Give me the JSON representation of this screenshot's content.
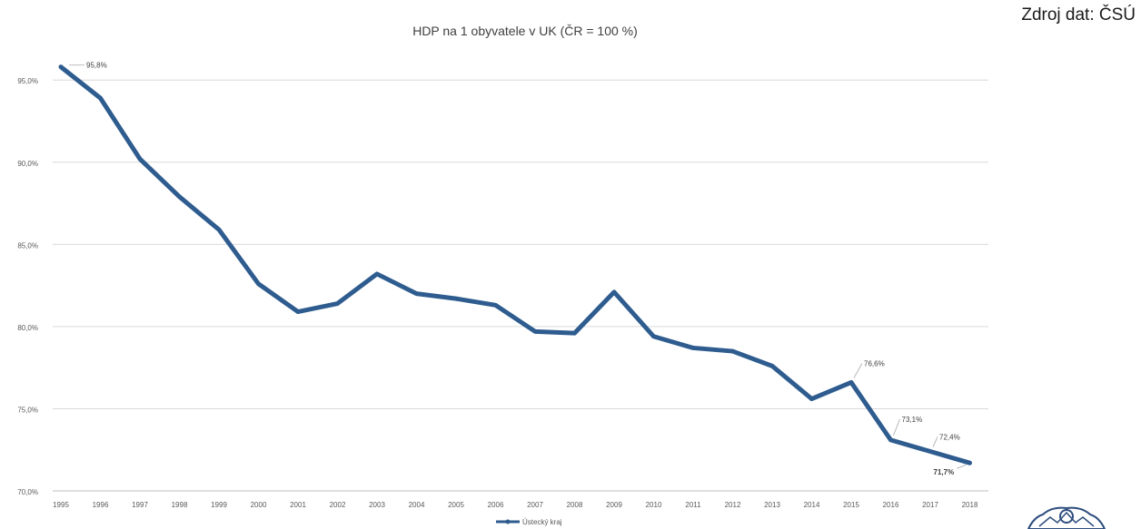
{
  "source": "Zdroj dat: ČSÚ",
  "chart_data": {
    "type": "line",
    "title": "HDP na 1 obyvatele v UK (ČR = 100 %)",
    "xlabel": "",
    "ylabel": "",
    "x": [
      "1995",
      "1996",
      "1997",
      "1998",
      "1999",
      "2000",
      "2001",
      "2002",
      "2003",
      "2004",
      "2005",
      "2006",
      "2007",
      "2008",
      "2009",
      "2010",
      "2011",
      "2012",
      "2013",
      "2014",
      "2015",
      "2016",
      "2017",
      "2018"
    ],
    "yticks": [
      "70,0%",
      "75,0%",
      "80,0%",
      "85,0%",
      "90,0%",
      "95,0%"
    ],
    "ylim": [
      70,
      97
    ],
    "grid": true,
    "legend_position": "bottom",
    "series": [
      {
        "name": "Ústecký kraj",
        "color": "#2e5c8f",
        "values": [
          95.8,
          93.9,
          90.2,
          87.9,
          85.9,
          82.6,
          80.9,
          81.4,
          83.2,
          82.0,
          81.7,
          81.3,
          79.7,
          79.6,
          82.1,
          79.4,
          78.7,
          78.5,
          77.6,
          75.6,
          76.6,
          73.1,
          72.4,
          71.7
        ]
      }
    ],
    "data_labels": [
      {
        "index": 0,
        "text": "95,8%"
      },
      {
        "index": 20,
        "text": "76,6%"
      },
      {
        "index": 21,
        "text": "73,1%"
      },
      {
        "index": 22,
        "text": "72,4%"
      },
      {
        "index": 23,
        "text": "71,7%"
      }
    ]
  }
}
